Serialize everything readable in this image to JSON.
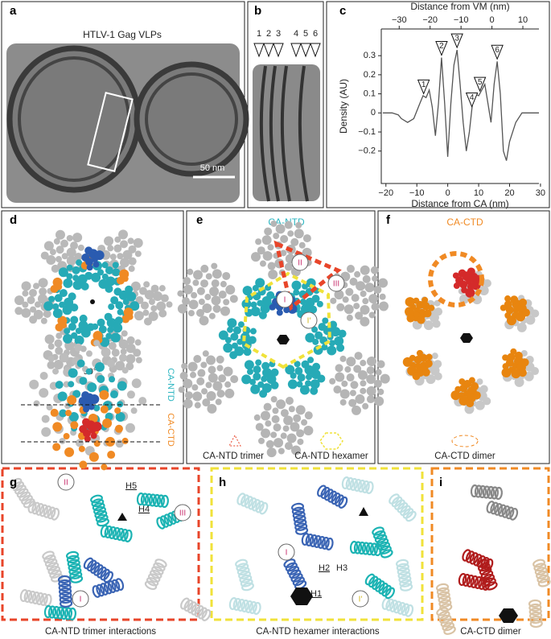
{
  "panels": {
    "a": {
      "label": "a",
      "title": "HTLV-1 Gag VLPs",
      "scale_bar": "50 nm"
    },
    "b": {
      "label": "b",
      "markers": [
        "1",
        "2",
        "3",
        "4",
        "5",
        "6"
      ]
    },
    "c": {
      "label": "c"
    },
    "d": {
      "label": "d",
      "rotation": "90°",
      "ntd": "CA-NTD",
      "ctd": "CA-CTD"
    },
    "e": {
      "label": "e",
      "title": "CA-NTD",
      "sites": [
        "II",
        "III",
        "I",
        "I′"
      ],
      "legend_trimer": "CA-NTD trimer",
      "legend_hexamer": "CA-NTD hexamer"
    },
    "f": {
      "label": "f",
      "title": "CA-CTD",
      "legend": "CA-CTD dimer"
    },
    "g": {
      "label": "g",
      "sites": [
        "II",
        "III",
        "I"
      ],
      "helices": [
        "H5",
        "H4"
      ],
      "caption": "CA-NTD trimer interactions"
    },
    "h": {
      "label": "h",
      "sites": [
        "I",
        "I′"
      ],
      "helices": [
        "H2",
        "H3",
        "H1"
      ],
      "caption": "CA-NTD hexamer interactions"
    },
    "i": {
      "label": "i",
      "caption": "CA-CTD dimer"
    }
  },
  "chart_data": {
    "type": "line",
    "x_label": "Distance from CA (nm)",
    "x2_label": "Distance from VM (nm)",
    "y_label": "Density (AU)",
    "color": "#555555",
    "x": [
      -21,
      -18,
      -16,
      -15,
      -13,
      -11,
      -9,
      -8,
      -7,
      -6,
      -5,
      -4,
      -3,
      -2,
      -1,
      0,
      1,
      2,
      3,
      4,
      5,
      6,
      7,
      8,
      9,
      10,
      11,
      12,
      13,
      14,
      15,
      16,
      17,
      18,
      19,
      20,
      22,
      24,
      29.5
    ],
    "values": [
      0,
      0,
      -0.01,
      -0.03,
      -0.05,
      -0.03,
      0.05,
      0.09,
      0.08,
      0.12,
      0.03,
      -0.12,
      0.05,
      0.29,
      0.05,
      -0.23,
      0.05,
      0.25,
      0.33,
      0.15,
      -0.05,
      -0.2,
      -0.1,
      0.05,
      0.1,
      0.09,
      0.12,
      0.15,
      0.05,
      -0.05,
      0.15,
      0.27,
      0.1,
      -0.2,
      -0.25,
      -0.15,
      -0.05,
      0,
      0
    ],
    "xlim": [
      -21.5,
      29.5
    ],
    "xticks": [
      {
        "value": -20,
        "label": "−20"
      },
      {
        "value": -10,
        "label": "−10"
      },
      0,
      10,
      20,
      30
    ],
    "x2lim": [
      -35.8,
      15.2
    ],
    "x2ticks": [
      {
        "value": -30,
        "label": "−30"
      },
      {
        "value": -20,
        "label": "−20"
      },
      {
        "value": -10,
        "label": "−10"
      },
      0,
      10
    ],
    "ylim": [
      -0.37,
      0.44
    ],
    "yticks": [
      {
        "value": -0.2,
        "label": "−0.2"
      },
      {
        "value": -0.1,
        "label": "−0.1"
      },
      0,
      0.1,
      0.2,
      0.3
    ],
    "peaks": [
      {
        "label": "1",
        "x": -7.8
      },
      {
        "label": "2",
        "x": -2
      },
      {
        "label": "3",
        "x": 3
      },
      {
        "label": "4",
        "x": 7.8
      },
      {
        "label": "5",
        "x": 10.4
      },
      {
        "label": "6",
        "x": 16
      }
    ]
  }
}
